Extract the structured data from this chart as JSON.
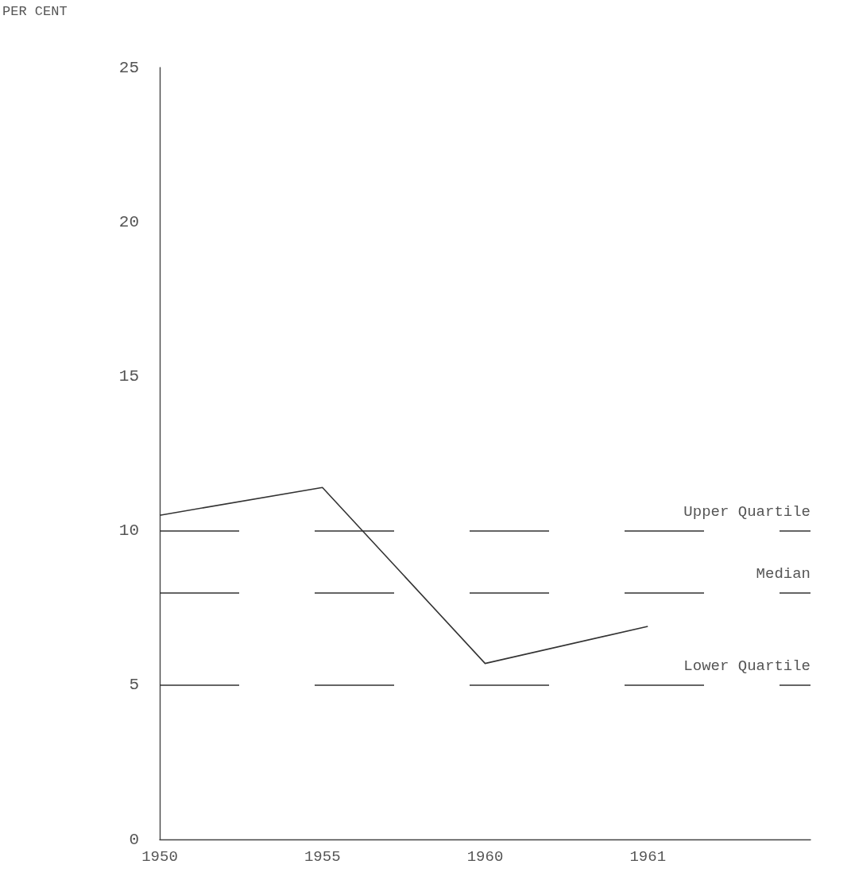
{
  "chart_data": {
    "type": "line",
    "ylabel": "PER CENT",
    "categories": [
      "1950",
      "1955",
      "1960",
      "1961",
      null
    ],
    "series": [
      {
        "color": "#333333",
        "values": [
          10.5,
          11.4,
          5.7,
          6.9,
          null
        ]
      }
    ],
    "ylim": [
      0,
      25
    ],
    "yticks": [
      0,
      5,
      10,
      15,
      20,
      25
    ],
    "grid": false,
    "marker": "none",
    "ref_lines": [
      {
        "axis": "y",
        "value": 10,
        "label": "Upper Quartile",
        "color": "#333333",
        "line_style": "dashed"
      },
      {
        "axis": "y",
        "value": 8,
        "label": "Median",
        "color": "#333333",
        "line_style": "dashed"
      },
      {
        "axis": "y",
        "value": 5,
        "label": "Lower Quartile",
        "color": "#333333",
        "line_style": "dashed"
      }
    ]
  }
}
